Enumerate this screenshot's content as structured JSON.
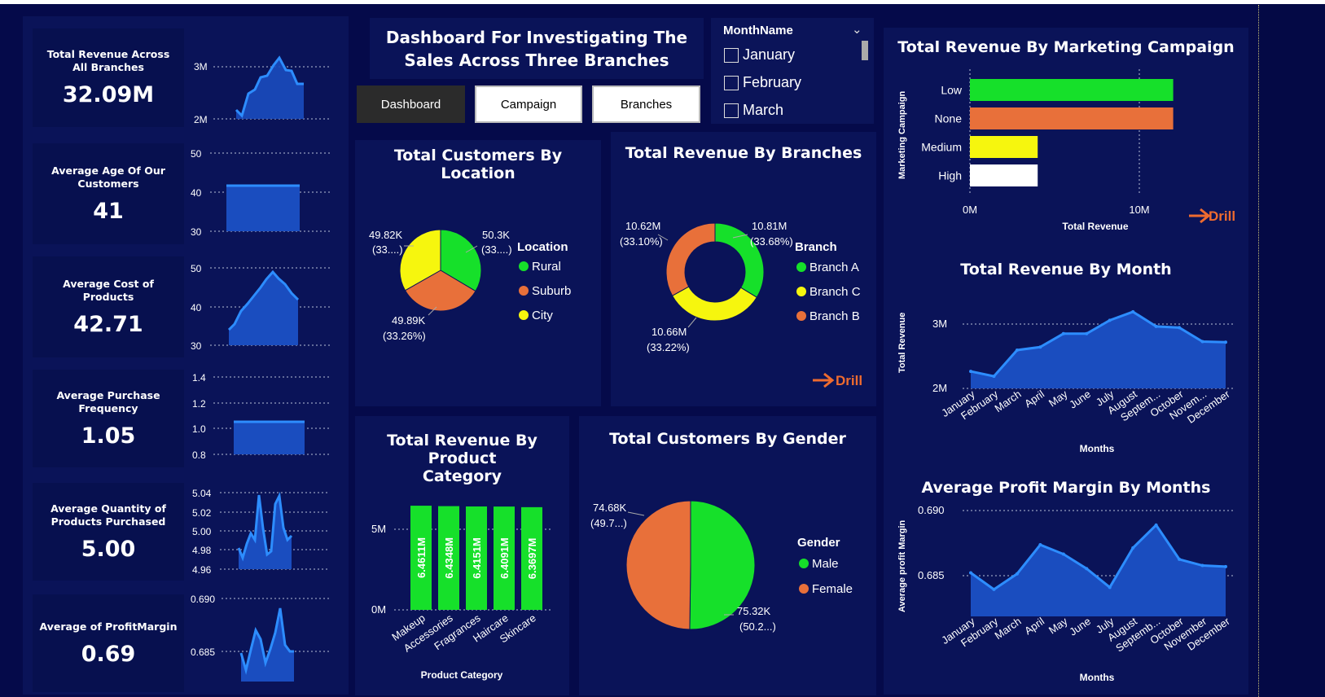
{
  "header": {
    "title_line1": "Dashboard For Investigating The",
    "title_line2": "Sales Across Three Branches",
    "nav": [
      {
        "label": "Dashboard",
        "active": true
      },
      {
        "label": "Campaign",
        "active": false
      },
      {
        "label": "Branches",
        "active": false
      }
    ]
  },
  "slicer": {
    "title": "MonthName",
    "options": [
      "January",
      "February",
      "March"
    ]
  },
  "kpis": [
    {
      "label": "Total Revenue Across All Branches",
      "value": "32.09M",
      "axis": [
        "3M",
        "2M"
      ]
    },
    {
      "label": "Average Age Of Our Customers",
      "value": "41",
      "axis": [
        "50",
        "40",
        "30"
      ]
    },
    {
      "label": "Average Cost of Products",
      "value": "42.71",
      "axis": [
        "50",
        "40",
        "30"
      ]
    },
    {
      "label": "Average Purchase Frequency",
      "value": "1.05",
      "axis": [
        "1.4",
        "1.2",
        "1.0",
        "0.8"
      ]
    },
    {
      "label": "Average Quantity of Products Purchased",
      "value": "5.00",
      "axis": [
        "5.04",
        "5.02",
        "5.00",
        "4.98",
        "4.96"
      ]
    },
    {
      "label": "Average of ProfitMargin",
      "value": "0.69",
      "axis": [
        "0.690",
        "0.685"
      ]
    }
  ],
  "drill_label": "Drill",
  "chart_data": [
    {
      "id": "customers_by_location",
      "type": "pie",
      "title": "Total Customers By Location",
      "legend_title": "Location",
      "slices": [
        {
          "name": "Rural",
          "value": 50.3,
          "label": "50.3K",
          "pct": "(33....)",
          "color": "#16e02a"
        },
        {
          "name": "Suburb",
          "value": 49.89,
          "label": "49.89K",
          "pct": "(33.26%)",
          "color": "#e8703a"
        },
        {
          "name": "City",
          "value": 49.82,
          "label": "49.82K",
          "pct": "(33....)",
          "color": "#f6f60e"
        }
      ]
    },
    {
      "id": "revenue_by_branches",
      "type": "pie",
      "title": "Total Revenue By Branches",
      "legend_title": "Branch",
      "slices": [
        {
          "name": "Branch A",
          "value": 10.81,
          "label": "10.81M",
          "pct": "(33.68%)",
          "color": "#16e02a"
        },
        {
          "name": "Branch C",
          "value": 10.66,
          "label": "10.66M",
          "pct": "(33.22%)",
          "color": "#f6f60e"
        },
        {
          "name": "Branch B",
          "value": 10.62,
          "label": "10.62M",
          "pct": "(33.10%)",
          "color": "#e8703a"
        }
      ]
    },
    {
      "id": "revenue_by_campaign",
      "type": "bar",
      "title": "Total Revenue By Marketing Campaign",
      "xlabel": "Total Revenue",
      "ylabel": "Marketing Campaign",
      "categories": [
        "Low",
        "None",
        "Medium",
        "High"
      ],
      "values": [
        12.0,
        12.0,
        4.0,
        4.0
      ],
      "colors": [
        "#16e02a",
        "#e8703a",
        "#f6f60e",
        "#ffffff"
      ],
      "ticks": [
        "0M",
        "10M"
      ],
      "xlim": [
        0,
        15
      ]
    },
    {
      "id": "revenue_by_month",
      "type": "area",
      "title": "Total Revenue By Month",
      "xlabel": "Months",
      "ylabel": "Total Revenue",
      "categories": [
        "January",
        "February",
        "March",
        "April",
        "May",
        "June",
        "July",
        "August",
        "Septem...",
        "October",
        "Novem...",
        "December"
      ],
      "values": [
        2.18,
        2.1,
        2.53,
        2.58,
        2.8,
        2.8,
        3.02,
        3.16,
        2.92,
        2.9,
        2.67,
        2.66
      ],
      "ticks": [
        "3M",
        "2M"
      ],
      "ylim": [
        1.9,
        3.4
      ]
    },
    {
      "id": "profit_margin_by_month",
      "type": "area",
      "title": "Average Profit Margin By Months",
      "xlabel": "Months",
      "ylabel": "Average profit Margin",
      "categories": [
        "January",
        "February",
        "March",
        "April",
        "May",
        "June",
        "July",
        "August",
        "Septemb...",
        "October",
        "November",
        "December"
      ],
      "values": [
        0.6845,
        0.6829,
        0.6844,
        0.6872,
        0.6863,
        0.6849,
        0.6831,
        0.6869,
        0.6891,
        0.6858,
        0.6852,
        0.6851
      ],
      "ticks": [
        "0.690",
        "0.685"
      ],
      "ylim": [
        0.6803,
        0.6905
      ]
    },
    {
      "id": "revenue_by_category",
      "type": "bar",
      "title_line1": "Total Revenue By Product",
      "title_line2": "Category",
      "xlabel": "Product Category",
      "categories": [
        "Makeup",
        "Accessories",
        "Fragrances",
        "Haircare",
        "Skincare"
      ],
      "values": [
        6.4611,
        6.4348,
        6.4151,
        6.4091,
        6.3697
      ],
      "labels": [
        "6.4611M",
        "6.4348M",
        "6.4151M",
        "6.4091M",
        "6.3697M"
      ],
      "ticks": [
        "5M",
        "0M"
      ],
      "ylim": [
        0,
        7.5
      ],
      "color": "#16e02a"
    },
    {
      "id": "customers_by_gender",
      "type": "pie",
      "title": "Total Customers By Gender",
      "legend_title": "Gender",
      "slices": [
        {
          "name": "Male",
          "value": 75.32,
          "label": "75.32K",
          "pct": "(50.2...)",
          "color": "#16e02a"
        },
        {
          "name": "Female",
          "value": 74.68,
          "label": "74.68K",
          "pct": "(49.7...)",
          "color": "#e8703a"
        }
      ]
    }
  ]
}
